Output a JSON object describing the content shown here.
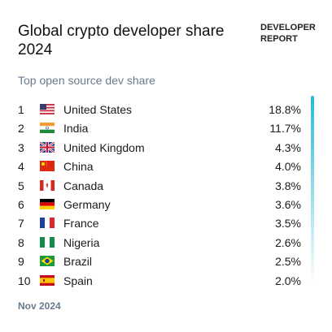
{
  "header": {
    "title": "Global crypto developer share 2024",
    "brand": "DEVELOPER REPORT"
  },
  "subtitle": "Top open source dev share",
  "rows": [
    {
      "rank": "1",
      "country": "United States",
      "share": "18.8%"
    },
    {
      "rank": "2",
      "country": "India",
      "share": "11.7%"
    },
    {
      "rank": "3",
      "country": "United Kingdom",
      "share": "4.3%"
    },
    {
      "rank": "4",
      "country": "China",
      "share": "4.0%"
    },
    {
      "rank": "5",
      "country": "Canada",
      "share": "3.8%"
    },
    {
      "rank": "6",
      "country": "Germany",
      "share": "3.6%"
    },
    {
      "rank": "7",
      "country": "France",
      "share": "3.5%"
    },
    {
      "rank": "8",
      "country": "Nigeria",
      "share": "2.6%"
    },
    {
      "rank": "9",
      "country": "Brazil",
      "share": "2.5%"
    },
    {
      "rank": "10",
      "country": "Spain",
      "share": "2.0%"
    }
  ],
  "footer": "Nov 2024"
}
